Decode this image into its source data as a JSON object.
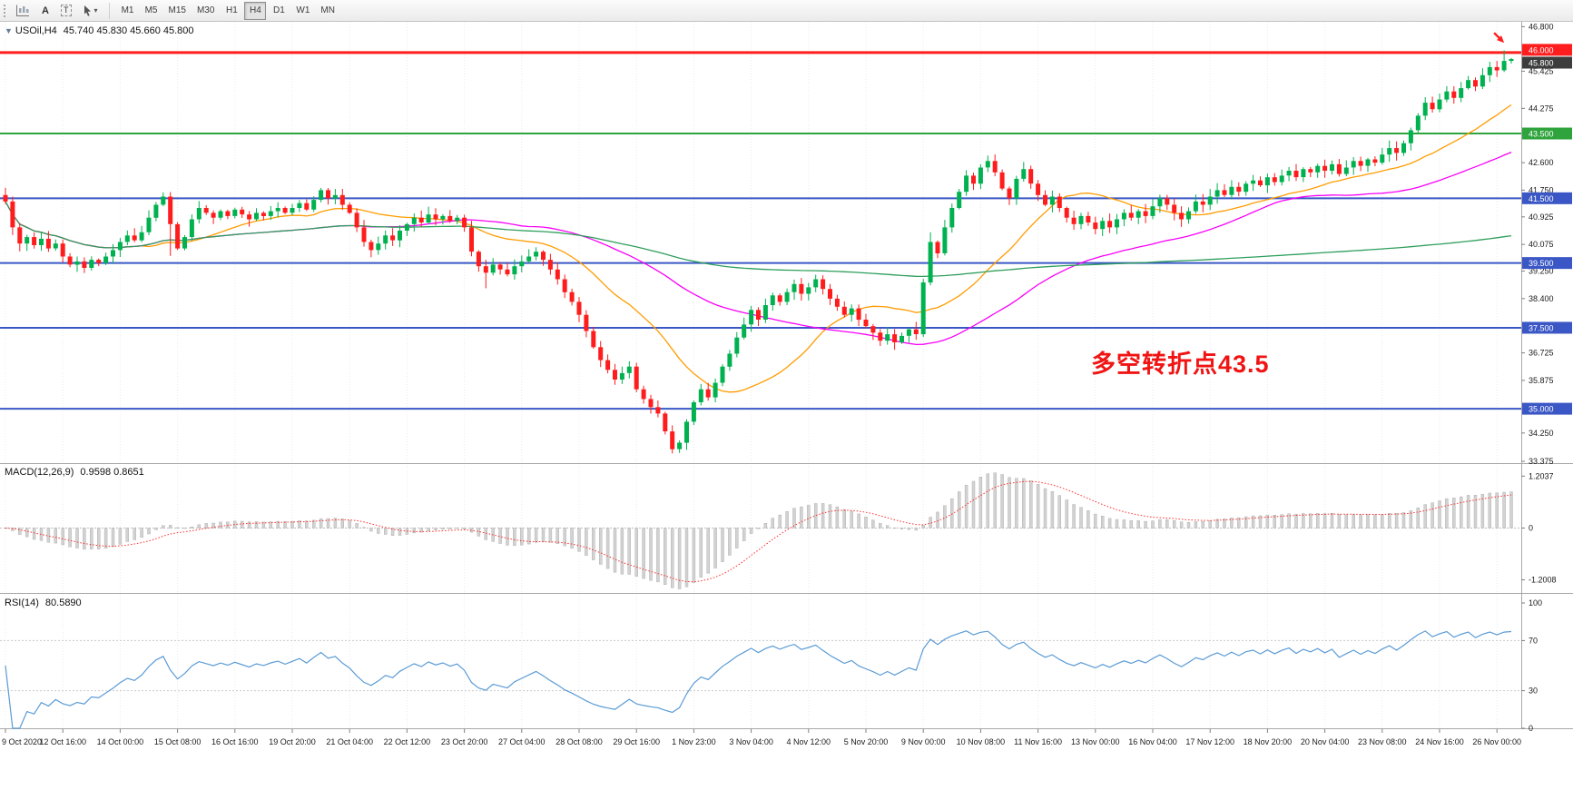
{
  "toolbar": {
    "tool_a_label": "A",
    "tool_t_label": "T",
    "timeframes": [
      "M1",
      "M5",
      "M15",
      "M30",
      "H1",
      "H4",
      "D1",
      "W1",
      "MN"
    ],
    "active_timeframe": "H4"
  },
  "header": {
    "collapse_arrow": "▼",
    "symbol": "USOil,H4",
    "ohlc": "45.740 45.830 45.660 45.800"
  },
  "annotation": {
    "text": "多空转折点43.5",
    "color": "#f01414"
  },
  "price_scale": {
    "ticks": [
      46.8,
      45.425,
      44.275,
      42.6,
      41.75,
      40.925,
      40.075,
      39.25,
      38.4,
      36.725,
      35.875,
      34.25,
      33.375
    ],
    "badges": [
      {
        "label": "46.000",
        "value": 46.0,
        "bg": "#ff1d1d",
        "dy": -3
      },
      {
        "label": "45.800",
        "value": 45.8,
        "bg": "#3d3d3d",
        "dy": 4
      },
      {
        "label": "43.500",
        "value": 43.5,
        "bg": "#2fa33c",
        "dy": 0
      },
      {
        "label": "41.500",
        "value": 41.5,
        "bg": "#3a57c5",
        "dy": 0
      },
      {
        "label": "39.500",
        "value": 39.5,
        "bg": "#3a57c5",
        "dy": 0
      },
      {
        "label": "37.500",
        "value": 37.5,
        "bg": "#3a57c5",
        "dy": 0
      },
      {
        "label": "35.000",
        "value": 35.0,
        "bg": "#3a57c5",
        "dy": 0
      }
    ]
  },
  "time_axis": {
    "labels": [
      "9 Oct 2020",
      "12 Oct 16:00",
      "14 Oct 00:00",
      "15 Oct 08:00",
      "16 Oct 16:00",
      "19 Oct 20:00",
      "21 Oct 04:00",
      "22 Oct 12:00",
      "23 Oct 20:00",
      "27 Oct 04:00",
      "28 Oct 08:00",
      "29 Oct 16:00",
      "1 Nov 23:00",
      "3 Nov 04:00",
      "4 Nov 12:00",
      "5 Nov 20:00",
      "9 Nov 00:00",
      "10 Nov 08:00",
      "11 Nov 16:00",
      "13 Nov 00:00",
      "16 Nov 04:00",
      "17 Nov 12:00",
      "18 Nov 20:00",
      "20 Nov 04:00",
      "23 Nov 08:00",
      "24 Nov 16:00",
      "26 Nov 00:00"
    ]
  },
  "macd": {
    "label": "MACD(12,26,9)",
    "values": "0.9598 0.8651",
    "scale_top": "1.2037",
    "scale_zero": "0",
    "scale_bottom": "-1.2008"
  },
  "rsi": {
    "label": "RSI(14)",
    "value": "80.5890",
    "scale_top": "100",
    "level_high": "70",
    "level_low": "30",
    "scale_bottom": "0"
  },
  "chart_data": {
    "type": "candlestick",
    "symbol": "USOil",
    "timeframe": "H4",
    "title": "USOil,H4",
    "y_range": [
      33.32,
      46.95
    ],
    "candles_per_label": 8,
    "last_candle": {
      "open": 45.74,
      "high": 45.83,
      "low": 45.66,
      "close": 45.8
    },
    "first_open": 41.6,
    "closes": [
      41.4,
      40.6,
      40.1,
      40.3,
      40.05,
      40.25,
      39.95,
      40.1,
      39.7,
      39.45,
      39.55,
      39.35,
      39.6,
      39.5,
      39.7,
      39.9,
      40.15,
      40.35,
      40.2,
      40.45,
      40.9,
      41.3,
      41.55,
      40.7,
      39.95,
      40.3,
      40.85,
      41.2,
      41.05,
      40.9,
      41.1,
      40.95,
      41.15,
      41.0,
      40.85,
      41.05,
      40.95,
      41.1,
      41.2,
      41.05,
      41.2,
      41.35,
      41.15,
      41.45,
      41.75,
      41.5,
      41.6,
      41.3,
      41.05,
      40.6,
      40.15,
      39.9,
      40.1,
      40.35,
      40.2,
      40.5,
      40.7,
      40.9,
      40.75,
      41.0,
      40.85,
      40.95,
      40.8,
      40.9,
      40.6,
      39.85,
      39.4,
      39.2,
      39.45,
      39.3,
      39.15,
      39.4,
      39.55,
      39.7,
      39.85,
      39.6,
      39.3,
      39.0,
      38.6,
      38.3,
      37.9,
      37.4,
      36.9,
      36.5,
      36.2,
      35.9,
      36.1,
      36.3,
      35.6,
      35.3,
      35.05,
      34.85,
      34.3,
      33.75,
      33.95,
      34.6,
      35.2,
      35.6,
      35.35,
      35.8,
      36.3,
      36.7,
      37.2,
      37.6,
      38.05,
      37.75,
      38.2,
      38.5,
      38.3,
      38.6,
      38.85,
      38.55,
      38.75,
      39.0,
      38.7,
      38.4,
      38.15,
      37.9,
      38.1,
      37.75,
      37.55,
      37.35,
      37.1,
      37.3,
      37.05,
      37.25,
      37.45,
      37.3,
      38.9,
      40.15,
      39.8,
      40.6,
      41.2,
      41.7,
      42.2,
      41.95,
      42.45,
      42.65,
      42.3,
      41.8,
      41.5,
      42.1,
      42.4,
      41.95,
      41.6,
      41.3,
      41.55,
      41.2,
      40.9,
      40.7,
      40.95,
      40.75,
      40.55,
      40.8,
      40.6,
      40.85,
      41.05,
      40.9,
      41.1,
      40.95,
      41.25,
      41.5,
      41.3,
      41.05,
      40.85,
      41.1,
      41.4,
      41.3,
      41.55,
      41.75,
      41.6,
      41.85,
      41.7,
      41.95,
      42.05,
      41.9,
      42.15,
      42.0,
      42.2,
      42.35,
      42.15,
      42.4,
      42.3,
      42.5,
      42.35,
      42.55,
      42.25,
      42.45,
      42.65,
      42.5,
      42.7,
      42.6,
      42.85,
      43.05,
      42.9,
      43.2,
      43.6,
      44.05,
      44.45,
      44.25,
      44.55,
      44.8,
      44.6,
      44.9,
      45.15,
      44.95,
      45.3,
      45.55,
      45.45,
      45.74,
      45.8
    ],
    "extremes": {
      "22": {
        "high": 41.68
      },
      "23": {
        "low": 39.72
      },
      "44": {
        "high": 41.82
      },
      "67": {
        "low": 38.72
      },
      "93": {
        "low": 33.62
      },
      "124": {
        "low": 36.82
      },
      "129": {
        "high": 40.45
      },
      "137": {
        "high": 42.82
      },
      "142": {
        "high": 42.62
      },
      "198": {
        "high": 44.62
      },
      "209": {
        "high": 46.07,
        "low": 45.4
      },
      "210": {
        "high": 45.83,
        "low": 45.66
      }
    },
    "up_color": "#00b14f",
    "down_color": "#fe1c1c",
    "moving_averages": [
      {
        "period": 20,
        "color": "#ff9c00"
      },
      {
        "period": 50,
        "color": "#f800f8"
      },
      {
        "period": 200,
        "color": "#2e9e5b"
      }
    ],
    "levels": [
      {
        "value": 46.0,
        "color": "#ff1d1d",
        "width": 3
      },
      {
        "value": 43.5,
        "color": "#2fa33c",
        "width": 2
      },
      {
        "value": 41.5,
        "color": "#3a57c5",
        "width": 2
      },
      {
        "value": 39.5,
        "color": "#3a57c5",
        "width": 2
      },
      {
        "value": 37.5,
        "color": "#3a57c5",
        "width": 2
      },
      {
        "value": 35.0,
        "color": "#3a57c5",
        "width": 2
      }
    ],
    "arrow": {
      "index": 209,
      "price": 46.3,
      "color": "#ff1d1d"
    },
    "macd_params": {
      "fast": 12,
      "slow": 26,
      "signal": 9
    },
    "rsi_period": 14,
    "rsi_levels": [
      70,
      30
    ]
  }
}
